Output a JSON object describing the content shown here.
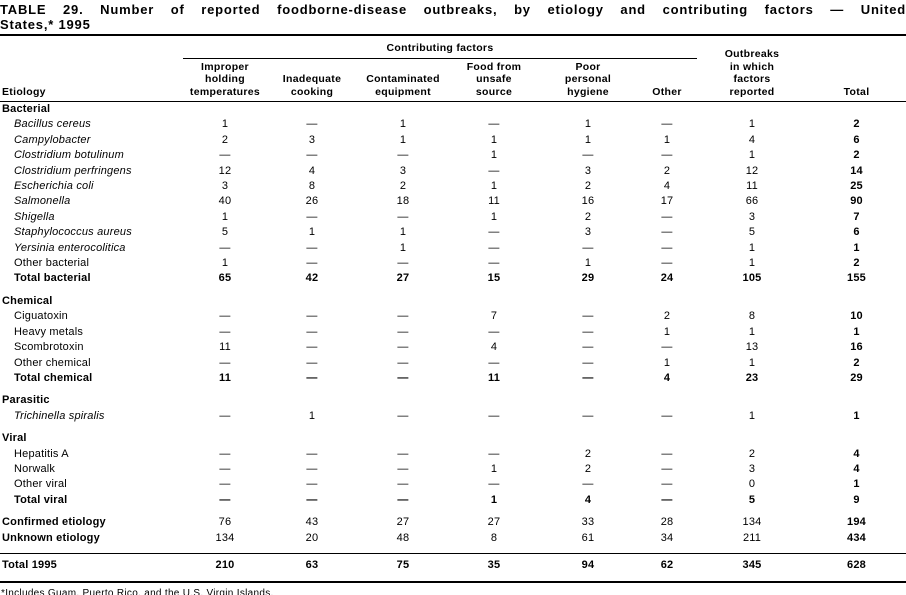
{
  "colors": {
    "text": "#000000",
    "background": "#ffffff",
    "rule": "#000000"
  },
  "title": {
    "line1": "TABLE 29. Number of reported foodborne-disease outbreaks, by etiology and contributing factors — United",
    "line2": "States,* 1995"
  },
  "table": {
    "header": {
      "etiology": "Etiology",
      "group": "Contributing factors",
      "factors": [
        "Improper\nholding\ntemperatures",
        "Inadequate\ncooking",
        "Contaminated\nequipment",
        "Food from\nunsafe\nsource",
        "Poor\npersonal\nhygiene",
        "Other"
      ],
      "outbreaks": "Outbreaks\nin which\nfactors\nreported",
      "total": "Total"
    },
    "rows": [
      {
        "type": "section",
        "label": "Bacterial",
        "values": []
      },
      {
        "type": "item",
        "italic": true,
        "label": "Bacillus cereus",
        "values": [
          "1",
          "—",
          "1",
          "—",
          "1",
          "—",
          "1",
          "2"
        ]
      },
      {
        "type": "item",
        "italic": true,
        "label": "Campylobacter",
        "values": [
          "2",
          "3",
          "1",
          "1",
          "1",
          "1",
          "4",
          "6"
        ]
      },
      {
        "type": "item",
        "italic": true,
        "label": "Clostridium botulinum",
        "values": [
          "—",
          "—",
          "—",
          "1",
          "—",
          "—",
          "1",
          "2"
        ]
      },
      {
        "type": "item",
        "italic": true,
        "label": "Clostridium perfringens",
        "values": [
          "12",
          "4",
          "3",
          "—",
          "3",
          "2",
          "12",
          "14"
        ]
      },
      {
        "type": "item",
        "italic": true,
        "label": "Escherichia coli",
        "values": [
          "3",
          "8",
          "2",
          "1",
          "2",
          "4",
          "11",
          "25"
        ]
      },
      {
        "type": "item",
        "italic": true,
        "label": "Salmonella",
        "values": [
          "40",
          "26",
          "18",
          "11",
          "16",
          "17",
          "66",
          "90"
        ]
      },
      {
        "type": "item",
        "italic": true,
        "label": "Shigella",
        "values": [
          "1",
          "—",
          "—",
          "1",
          "2",
          "—",
          "3",
          "7"
        ]
      },
      {
        "type": "item",
        "italic": true,
        "label": "Staphylococcus aureus",
        "values": [
          "5",
          "1",
          "1",
          "—",
          "3",
          "—",
          "5",
          "6"
        ]
      },
      {
        "type": "item",
        "italic": true,
        "label": "Yersinia enterocolitica",
        "values": [
          "—",
          "—",
          "1",
          "—",
          "—",
          "—",
          "1",
          "1"
        ]
      },
      {
        "type": "item",
        "italic": false,
        "label": "Other bacterial",
        "values": [
          "1",
          "—",
          "—",
          "—",
          "1",
          "—",
          "1",
          "2"
        ]
      },
      {
        "type": "total",
        "label": "Total bacterial",
        "values": [
          "65",
          "42",
          "27",
          "15",
          "29",
          "24",
          "105",
          "155"
        ]
      },
      {
        "type": "section",
        "label": "Chemical",
        "gap": true,
        "values": []
      },
      {
        "type": "item",
        "italic": false,
        "label": "Ciguatoxin",
        "values": [
          "—",
          "—",
          "—",
          "7",
          "—",
          "2",
          "8",
          "10"
        ]
      },
      {
        "type": "item",
        "italic": false,
        "label": "Heavy metals",
        "values": [
          "—",
          "—",
          "—",
          "—",
          "—",
          "1",
          "1",
          "1"
        ]
      },
      {
        "type": "item",
        "italic": false,
        "label": "Scombrotoxin",
        "values": [
          "11",
          "—",
          "—",
          "4",
          "—",
          "—",
          "13",
          "16"
        ]
      },
      {
        "type": "item",
        "italic": false,
        "label": "Other chemical",
        "values": [
          "—",
          "—",
          "—",
          "—",
          "—",
          "1",
          "1",
          "2"
        ]
      },
      {
        "type": "total",
        "label": "Total chemical",
        "values": [
          "11",
          "—",
          "—",
          "11",
          "—",
          "4",
          "23",
          "29"
        ]
      },
      {
        "type": "section",
        "label": "Parasitic",
        "gap": true,
        "values": []
      },
      {
        "type": "item",
        "italic": true,
        "label": "Trichinella spiralis",
        "values": [
          "—",
          "1",
          "—",
          "—",
          "—",
          "—",
          "1",
          "1"
        ]
      },
      {
        "type": "section",
        "label": "Viral",
        "gap": true,
        "values": []
      },
      {
        "type": "item",
        "italic": false,
        "label": "Hepatitis A",
        "values": [
          "—",
          "—",
          "—",
          "—",
          "2",
          "—",
          "2",
          "4"
        ]
      },
      {
        "type": "item",
        "italic": false,
        "label": "Norwalk",
        "values": [
          "—",
          "—",
          "—",
          "1",
          "2",
          "—",
          "3",
          "4"
        ]
      },
      {
        "type": "item",
        "italic": false,
        "label": "Other viral",
        "values": [
          "—",
          "—",
          "—",
          "—",
          "—",
          "—",
          "0",
          "1"
        ]
      },
      {
        "type": "total",
        "label": "Total viral",
        "values": [
          "—",
          "—",
          "—",
          "1",
          "4",
          "—",
          "5",
          "9"
        ]
      },
      {
        "type": "summary",
        "label": "Confirmed etiology",
        "gap": true,
        "values": [
          "76",
          "43",
          "27",
          "27",
          "33",
          "28",
          "134",
          "194"
        ]
      },
      {
        "type": "summary",
        "label": "Unknown etiology",
        "values": [
          "134",
          "20",
          "48",
          "8",
          "61",
          "34",
          "211",
          "434"
        ]
      },
      {
        "type": "grandtotal",
        "label": "Total 1995",
        "rule": true,
        "values": [
          "210",
          "63",
          "75",
          "35",
          "94",
          "62",
          "345",
          "628"
        ]
      }
    ]
  },
  "footnote": "*Includes Guam, Puerto Rico, and the U.S. Virgin Islands."
}
